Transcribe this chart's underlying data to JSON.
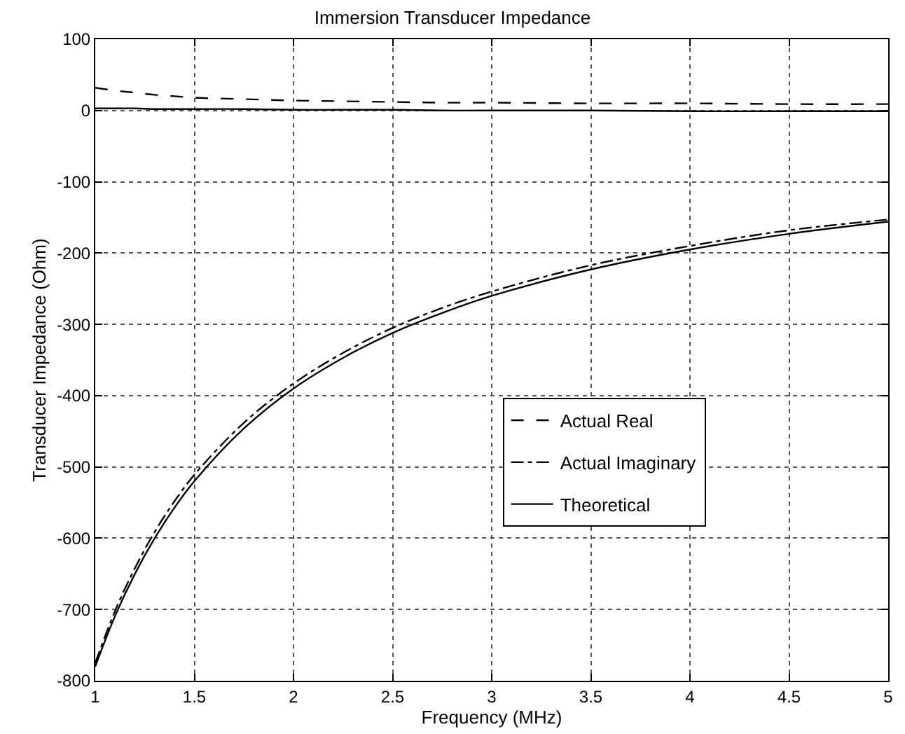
{
  "chart_data": {
    "type": "line",
    "title": "Immersion Transducer Impedance",
    "xlabel": "Frequency (MHz)",
    "ylabel": "Transducer Impedance (Ohm)",
    "x": [
      1,
      1.1,
      1.2,
      1.3,
      1.4,
      1.5,
      1.75,
      2,
      2.25,
      2.5,
      2.75,
      3,
      3.5,
      4,
      4.5,
      5
    ],
    "series": [
      {
        "name": "Actual Real",
        "color": "#000000",
        "line_style": "dashed",
        "values": [
          32,
          28,
          25,
          22,
          20,
          18,
          16,
          14,
          13,
          12,
          11,
          11,
          10,
          10,
          9,
          9
        ]
      },
      {
        "name": "Actual Imaginary",
        "color": "#000000",
        "line_style": "dashdot",
        "values": [
          -775,
          -702,
          -642,
          -591,
          -548,
          -511,
          -438,
          -383,
          -340,
          -305,
          -277,
          -254,
          -217,
          -190,
          -168,
          -153
        ]
      },
      {
        "name": "Theoretical",
        "color": "#000000",
        "line_style": "solid",
        "values": [
          3,
          3,
          3,
          2,
          2,
          2,
          2,
          1,
          1,
          1,
          0,
          0,
          0,
          -1,
          -1,
          -1
        ]
      },
      {
        "color": "#000000",
        "line_style": "solid",
        "values": [
          -780,
          -709,
          -650,
          -600,
          -557,
          -520,
          -446,
          -390,
          -347,
          -312,
          -284,
          -260,
          -223,
          -195,
          -173,
          -156
        ]
      }
    ],
    "xlim": [
      1,
      5
    ],
    "xticks": [
      1,
      1.5,
      2,
      2.5,
      3,
      3.5,
      4,
      4.5,
      5
    ],
    "ylim": [
      -800,
      100
    ],
    "yticks": [
      -800,
      -700,
      -600,
      -500,
      -400,
      -300,
      -200,
      -100,
      0,
      100
    ],
    "grid": true,
    "legend": "bottom right",
    "marker": "none"
  }
}
